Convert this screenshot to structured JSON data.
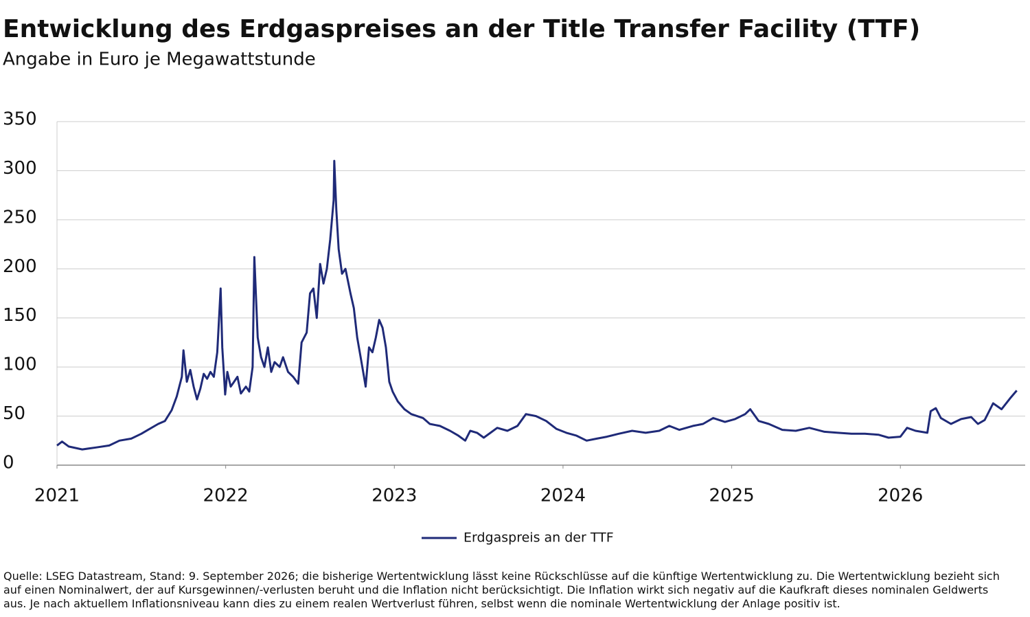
{
  "chart_data": {
    "type": "line",
    "title": "Entwicklung des Erdgaspreises an der Title Transfer Facility (TTF)",
    "subtitle": "Angabe in Euro je Megawattstunde",
    "x": [
      2021.0,
      2021.03,
      2021.07,
      2021.15,
      2021.23,
      2021.31,
      2021.37,
      2021.44,
      2021.5,
      2021.54,
      2021.6,
      2021.64,
      2021.68,
      2021.71,
      2021.74,
      2021.75,
      2021.77,
      2021.79,
      2021.81,
      2021.83,
      2021.85,
      2021.87,
      2021.89,
      2021.91,
      2021.93,
      2021.95,
      2021.97,
      2021.98,
      2021.997,
      2022.01,
      2022.03,
      2022.05,
      2022.07,
      2022.09,
      2022.12,
      2022.14,
      2022.16,
      2022.17,
      2022.19,
      2022.21,
      2022.23,
      2022.25,
      2022.27,
      2022.29,
      2022.32,
      2022.34,
      2022.37,
      2022.4,
      2022.43,
      2022.45,
      2022.48,
      2022.5,
      2022.52,
      2022.54,
      2022.56,
      2022.58,
      2022.6,
      2022.62,
      2022.64,
      2022.644,
      2022.656,
      2022.67,
      2022.69,
      2022.71,
      2022.74,
      2022.76,
      2022.78,
      2022.8,
      2022.82,
      2022.83,
      2022.85,
      2022.87,
      2022.89,
      2022.91,
      2022.93,
      2022.95,
      2022.97,
      2022.99,
      2023.02,
      2023.06,
      2023.1,
      2023.17,
      2023.21,
      2023.27,
      2023.33,
      2023.38,
      2023.42,
      2023.45,
      2023.49,
      2023.53,
      2023.57,
      2023.61,
      2023.67,
      2023.73,
      2023.78,
      2023.84,
      2023.9,
      2023.96,
      2024.02,
      2024.08,
      2024.14,
      2024.2,
      2024.26,
      2024.33,
      2024.41,
      2024.49,
      2024.57,
      2024.63,
      2024.69,
      2024.77,
      2024.83,
      2024.89,
      2024.96,
      2025.02,
      2025.08,
      2025.11,
      2025.16,
      2025.22,
      2025.3,
      2025.38,
      2025.46,
      2025.55,
      2025.63,
      2025.71,
      2025.79,
      2025.87,
      2025.93,
      2026.0,
      2026.04,
      2026.09,
      2026.16,
      2026.18,
      2026.21,
      2026.24,
      2026.3,
      2026.36,
      2026.42,
      2026.46,
      2026.5,
      2026.55,
      2026.6,
      2026.65,
      2026.69
    ],
    "series": [
      {
        "name": "Erdgaspreis an der TTF",
        "color": "#1f2a78",
        "values": [
          20,
          24,
          19,
          16,
          18,
          20,
          25,
          27,
          32,
          36,
          42,
          45,
          56,
          70,
          90,
          117,
          85,
          97,
          80,
          67,
          78,
          93,
          88,
          95,
          90,
          115,
          180,
          120,
          72,
          95,
          80,
          85,
          90,
          73,
          80,
          75,
          100,
          212,
          130,
          110,
          100,
          120,
          95,
          105,
          100,
          110,
          95,
          90,
          83,
          125,
          135,
          175,
          180,
          150,
          205,
          185,
          200,
          230,
          270,
          310,
          260,
          220,
          195,
          200,
          175,
          160,
          130,
          110,
          90,
          80,
          120,
          115,
          130,
          148,
          140,
          120,
          85,
          75,
          65,
          57,
          52,
          48,
          42,
          40,
          35,
          30,
          25,
          35,
          33,
          28,
          33,
          38,
          35,
          40,
          52,
          50,
          45,
          37,
          33,
          30,
          25,
          27,
          29,
          32,
          35,
          33,
          35,
          40,
          36,
          40,
          42,
          48,
          44,
          47,
          52,
          57,
          45,
          42,
          36,
          35,
          38,
          34,
          33,
          32,
          32,
          31,
          28,
          29,
          38,
          35,
          33,
          55,
          58,
          48,
          42,
          47,
          49,
          42,
          46,
          63,
          57,
          68,
          76
        ]
      }
    ],
    "xlim": [
      2021,
      2026.74
    ],
    "xticks": [
      2021,
      2022,
      2023,
      2024,
      2025,
      2026
    ],
    "ylim": [
      0,
      350
    ],
    "yticks": [
      0,
      50,
      100,
      150,
      200,
      250,
      300,
      350
    ],
    "grid": true,
    "legend": "bottom",
    "note": "Quelle: LSEG Datastream, Stand: 9. September 2026; die bisherige Wertentwicklung lässt keine Rückschlüsse auf die künftige Wertentwicklung zu. Die Wertentwicklung bezieht sich auf einen Nominalwert, der auf Kursgewinnen/-verlusten beruht und die Inflation nicht berücksichtigt. Die Inflation wirkt sich negativ auf die Kaufkraft dieses nominalen Geldwerts aus. Je nach aktuellem Inflationsniveau kann dies zu einem realen Wertverlust führen, selbst wenn die nominale Wertentwicklung der Anlage positiv ist."
  }
}
